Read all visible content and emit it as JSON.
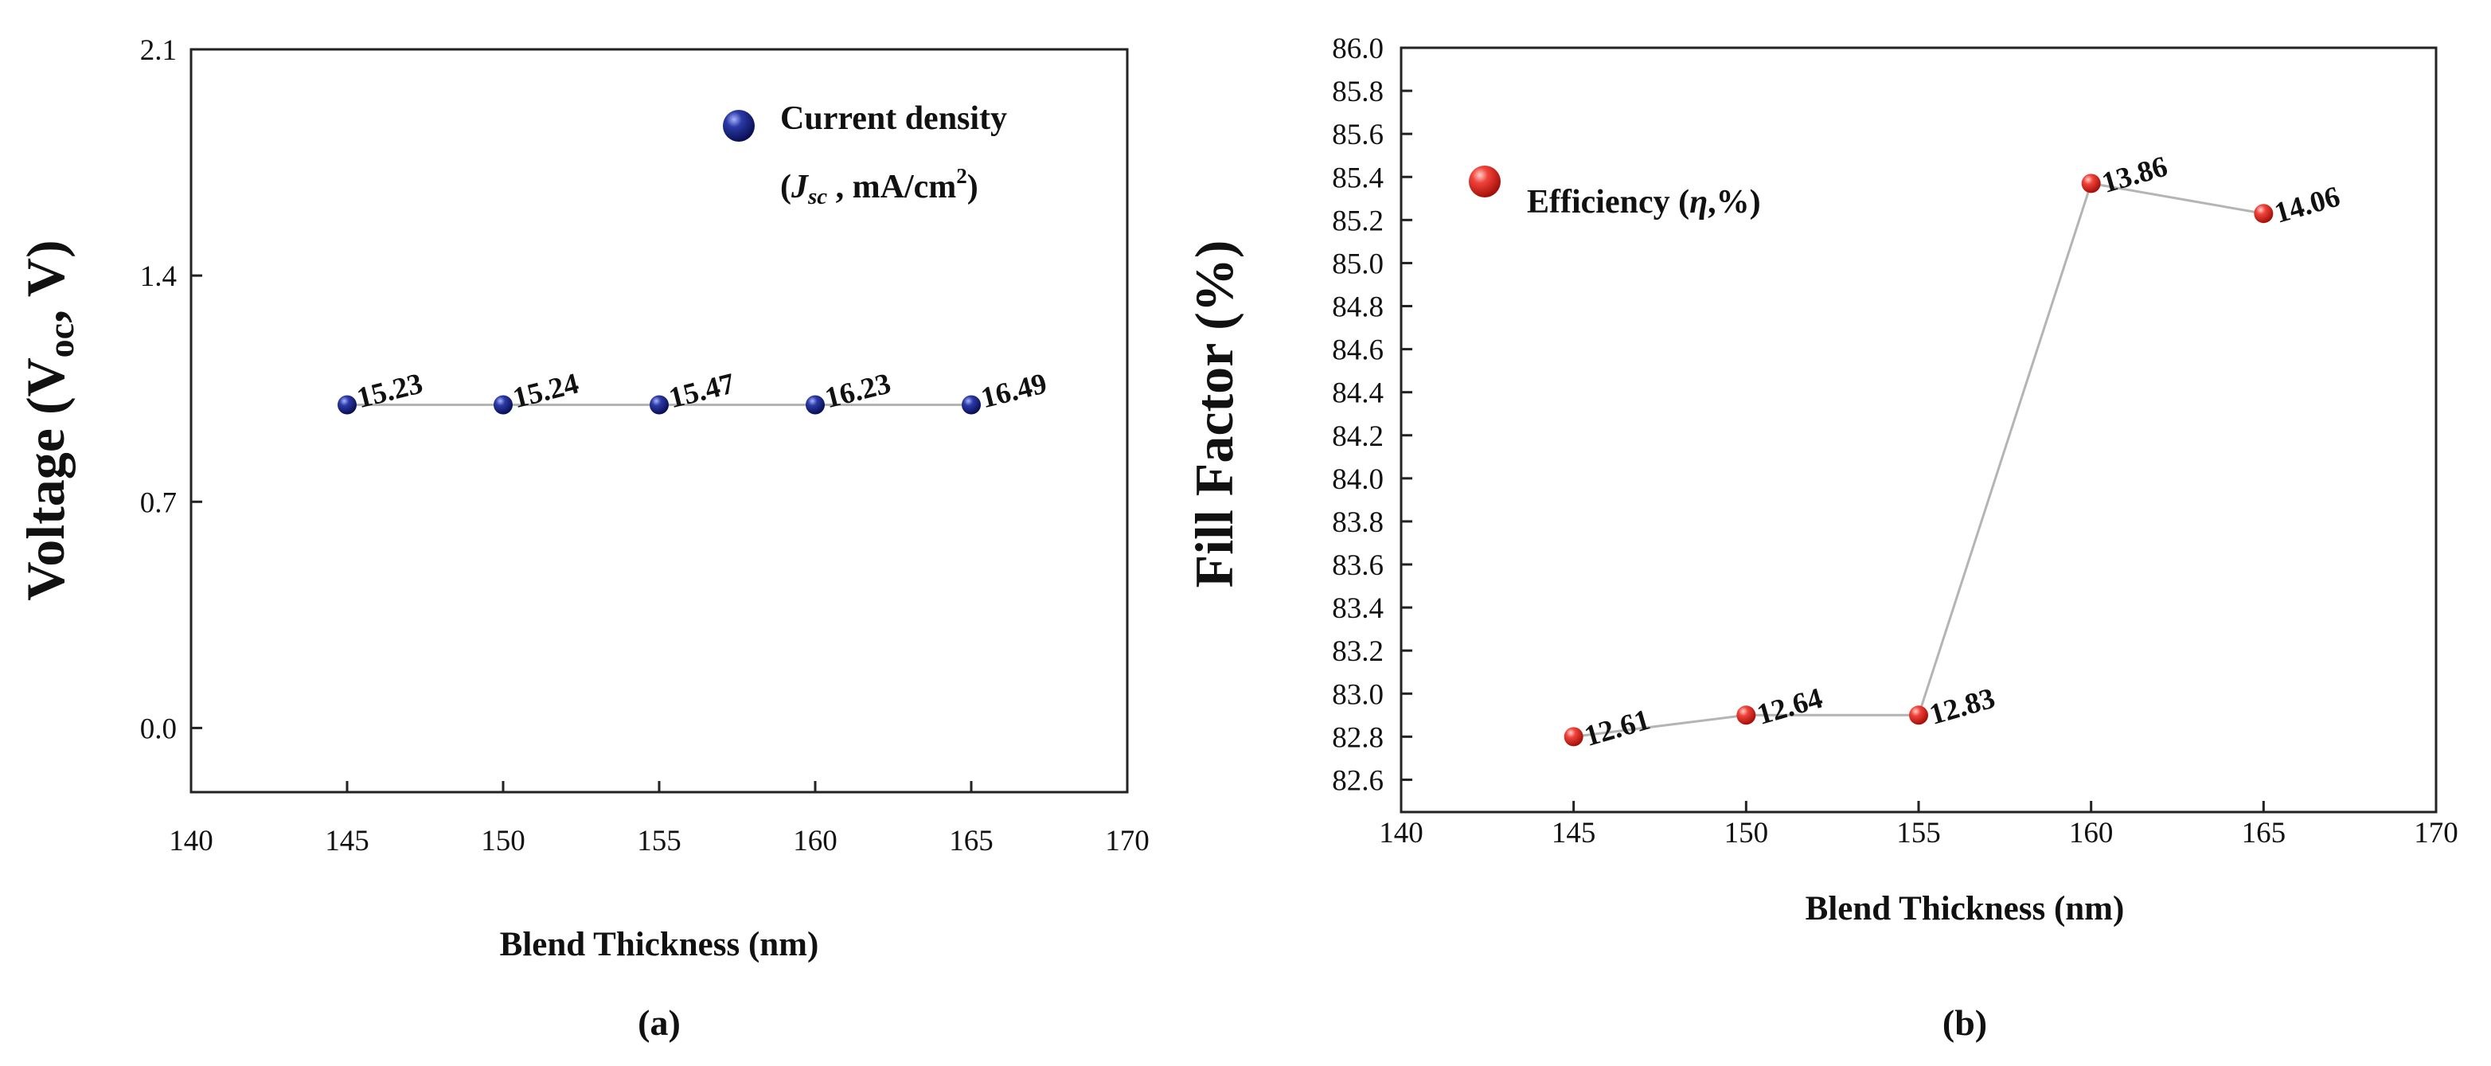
{
  "chart_data": [
    {
      "panel": "(a)",
      "type": "scatter",
      "xlabel": "Blend Thickness (nm)",
      "ylabel": "Voltage (Voc, V)",
      "ylabel_main": "Voltage (V",
      "ylabel_sub": "oc",
      "ylabel_end": ", V)",
      "xlim": [
        140,
        170
      ],
      "ylim": [
        -0.1,
        2.1
      ],
      "xticks": [
        140,
        145,
        150,
        155,
        160,
        165,
        170
      ],
      "yticks": [
        0.0,
        0.7,
        1.4,
        2.1
      ],
      "ytick_labels": [
        "0.0",
        "0.7",
        "1.4",
        "2.1"
      ],
      "legend": {
        "line1": "Current density",
        "line2_pre": "(",
        "line2_italic": "J",
        "line2_sub": "sc",
        "line2_mid": " , mA/cm",
        "line2_sup": "2",
        "line2_end": ")",
        "color": "#1a237e",
        "position": "top-right"
      },
      "series": [
        {
          "name": "Current density (Jsc, mA/cm2)",
          "color": "#1a237e",
          "x": [
            145,
            150,
            155,
            160,
            165
          ],
          "y": [
            1.0,
            1.0,
            1.0,
            1.0,
            1.0
          ],
          "labels": [
            "15.23",
            "15.24",
            "15.47",
            "16.23",
            "16.49"
          ]
        }
      ]
    },
    {
      "panel": "(b)",
      "type": "scatter",
      "xlabel": "Blend Thickness (nm)",
      "ylabel": "Fill Factor (%)",
      "xlim": [
        140,
        170
      ],
      "ylim": [
        82.45,
        86.0
      ],
      "xticks": [
        140,
        145,
        150,
        155,
        160,
        165,
        170
      ],
      "yticks": [
        82.6,
        82.8,
        83.0,
        83.2,
        83.4,
        83.6,
        83.8,
        84.0,
        84.2,
        84.4,
        84.6,
        84.8,
        85.0,
        85.2,
        85.4,
        85.6,
        85.8,
        86.0
      ],
      "ytick_labels": [
        "82.6",
        "82.8",
        "83.0",
        "83.2",
        "83.4",
        "83.6",
        "83.8",
        "84.0",
        "84.2",
        "84.4",
        "84.6",
        "84.8",
        "85.0",
        "85.2",
        "85.4",
        "85.6",
        "85.8",
        "86.0"
      ],
      "legend": {
        "text_pre": "Efficiency (",
        "text_italic": "η",
        "text_end": ",%)",
        "color": "#e53935",
        "position": "top-left"
      },
      "series": [
        {
          "name": "Efficiency (η,%)",
          "color": "#e53935",
          "x": [
            145,
            150,
            155,
            160,
            165
          ],
          "y": [
            82.8,
            82.9,
            82.9,
            85.37,
            85.23
          ],
          "labels": [
            "12.61",
            "12.64",
            "12.83",
            "13.86",
            "14.06"
          ]
        }
      ]
    }
  ]
}
